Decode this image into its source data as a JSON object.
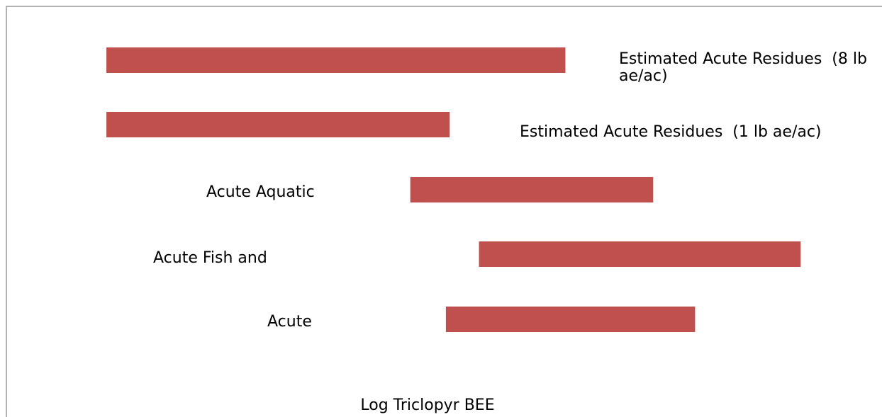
{
  "chart_data": {
    "type": "floating-bar",
    "x_label": "Log Triclopyr BEE",
    "categories": [
      "Estimated Acute Residues  (8 lb ae/ac)",
      "Estimated Acute Residues  (1 lb ae/ac)",
      "Acute Aquatic",
      "Acute Fish and",
      "Acute"
    ],
    "low": [
      0.48,
      0.48,
      2.87,
      3.41,
      3.15
    ],
    "high": [
      4.09,
      3.18,
      4.78,
      5.94,
      5.11
    ],
    "color": "#c0504d",
    "xlim": [
      0,
      6
    ],
    "xticks": [
      0,
      1,
      2,
      3,
      4,
      5,
      6
    ]
  }
}
